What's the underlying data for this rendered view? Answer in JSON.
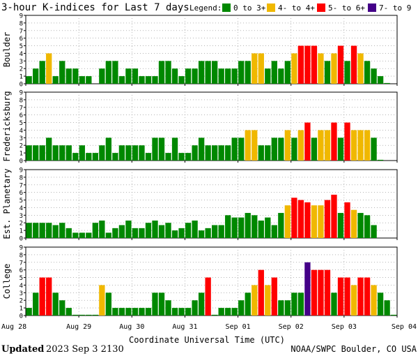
{
  "chart_data": {
    "type": "bar",
    "title": "3-hour K-indices for Last 7 days",
    "legend_label": "Legend:",
    "legend": [
      {
        "label": "0 to 3+",
        "color": "#008800"
      },
      {
        "label": "4- to 4+",
        "color": "#f0b800"
      },
      {
        "label": "5- to 6+",
        "color": "#ff0000"
      },
      {
        "label": "7- to 9",
        "color": "#440088"
      }
    ],
    "ylim": [
      0,
      9
    ],
    "y_ticks": [
      "0",
      "1",
      "2",
      "3",
      "4",
      "5",
      "6",
      "7",
      "8",
      "9"
    ],
    "x_ticks": [
      "Aug 28",
      "Aug 29",
      "Aug 30",
      "Aug 31",
      "Sep 01",
      "Sep 02",
      "Sep 03",
      "Sep 04"
    ],
    "xlabel": "Coordinate Universal Time (UTC)",
    "interval_hours": 3,
    "panels": [
      {
        "name": "Boulder",
        "values": [
          1,
          2,
          3,
          4,
          1,
          3,
          2,
          2,
          1,
          1,
          0,
          2,
          3,
          3,
          1,
          2,
          2,
          1,
          1,
          1,
          3,
          3,
          2,
          1,
          2,
          2,
          3,
          3,
          3,
          2,
          2,
          2,
          3,
          3,
          4,
          4,
          2,
          3,
          2,
          3,
          4,
          5,
          5,
          5,
          4,
          3,
          4,
          5,
          3,
          5,
          4,
          3,
          2,
          1,
          0.1
        ]
      },
      {
        "name": "Fredericksburg",
        "values": [
          2,
          2,
          2,
          3,
          2,
          2,
          2,
          1,
          2,
          1,
          1,
          2,
          3,
          1,
          2,
          2,
          2,
          2,
          1,
          3,
          3,
          1,
          3,
          1,
          1,
          2,
          3,
          2,
          2,
          2,
          2,
          3,
          3,
          4,
          4,
          2,
          2,
          3,
          3,
          4,
          3,
          4,
          5,
          3,
          4,
          4,
          5,
          3,
          5,
          4,
          4,
          4,
          3,
          0.1
        ]
      },
      {
        "name": "Est. Planetary",
        "values": [
          2,
          2,
          2,
          2,
          1.7,
          2,
          1.3,
          0.7,
          0.7,
          0.7,
          2,
          2.3,
          0.7,
          1.3,
          1.7,
          2.3,
          1.3,
          1.3,
          2,
          2.3,
          1.7,
          2,
          1,
          1.3,
          2,
          2.3,
          1,
          1.3,
          1.7,
          1.7,
          3,
          2.7,
          2.7,
          3.3,
          3,
          2.3,
          2.7,
          1.7,
          3.3,
          4.3,
          5.3,
          5,
          4.7,
          4.3,
          4.3,
          5,
          5.7,
          3.3,
          4.7,
          3.7,
          3.3,
          3,
          1.7
        ]
      },
      {
        "name": "College",
        "values": [
          1,
          3,
          5,
          5,
          3,
          2,
          1,
          0.1,
          0.1,
          0.1,
          0.1,
          4,
          3,
          1,
          1,
          1,
          1,
          1,
          1,
          3,
          3,
          2,
          1,
          1,
          1,
          2,
          3,
          5,
          0.1,
          1,
          1,
          1,
          2,
          3,
          4,
          6,
          4,
          5,
          2,
          2,
          3,
          3,
          7,
          6,
          6,
          6,
          3,
          5,
          5,
          4,
          5,
          5,
          4,
          3,
          2,
          0.1
        ]
      }
    ]
  },
  "footer": {
    "updated_label": "Updated",
    "updated_value": "2023 Sep  3 2130",
    "source": "NOAA/SWPC Boulder, CO USA"
  }
}
